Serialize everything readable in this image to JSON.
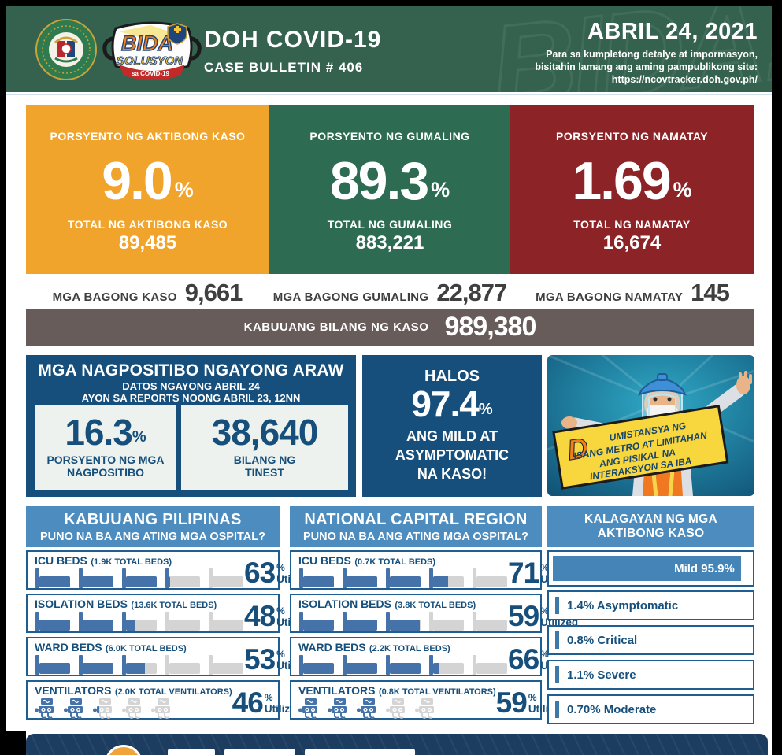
{
  "header": {
    "watermark": "BIDA!",
    "title": "DOH COVID-19",
    "subtitle": "CASE BULLETIN # 406",
    "date": "ABRIL 24, 2021",
    "note1": "Para sa kumpletong detalye at impormasyon,",
    "note2": "bisitahin lamang ang aming pampublikong site:",
    "url": "https://ncovtracker.doh.gov.ph/",
    "doh_seal": "doh-seal-icon",
    "bida_logo_text1": "BIDA",
    "bida_logo_text2": "SOLUSYON",
    "bida_logo_text3": "sa COVID-19"
  },
  "stats": [
    {
      "label": "PORSYENTO NG AKTIBONG KASO",
      "value": "9.0",
      "unit": "%",
      "total_label": "TOTAL NG AKTIBONG KASO",
      "total": "89,485",
      "color": "#F1A42C"
    },
    {
      "label": "PORSYENTO NG GUMALING",
      "value": "89.3",
      "unit": "%",
      "total_label": "TOTAL NG GUMALING",
      "total": "883,221",
      "color": "#2D6C53"
    },
    {
      "label": "PORSYENTO NG NAMATAY",
      "value": "1.69",
      "unit": "%",
      "total_label": "TOTAL NG NAMATAY",
      "total": "16,674",
      "color": "#8C2427"
    }
  ],
  "new_row": [
    {
      "label": "MGA BAGONG KASO",
      "value": "9,661"
    },
    {
      "label": "MGA BAGONG GUMALING",
      "value": "22,877"
    },
    {
      "label": "MGA BAGONG NAMATAY",
      "value": "145"
    }
  ],
  "total_bar": {
    "label": "KABUUANG BILANG NG KASO",
    "value": "989,380"
  },
  "positives": {
    "title": "MGA NAGPOSITIBO NGAYONG ARAW",
    "sub1": "DATOS NGAYONG ABRIL 24",
    "sub2": "AYON SA REPORTS NOONG ABRIL 23, 12NN",
    "pct_value": "16.3",
    "pct_unit": "%",
    "pct_label1": "PORSYENTO NG MGA",
    "pct_label2": "NAGPOSITIBO",
    "count_value": "38,640",
    "count_label1": "BILANG NG",
    "count_label2": "TINEST"
  },
  "mild_note": {
    "intro": "HALOS",
    "value": "97.4",
    "unit": "%",
    "line1": "ANG MILD AT",
    "line2": "ASYMPTOMATIC",
    "line3": "NA KASO!"
  },
  "poster": {
    "sign_initial": "D",
    "sign_line1": "UMISTANSYA NG",
    "sign_line2": "ISANG METRO AT LIMITAHAN",
    "sign_line3": "ANG PISIKAL NA",
    "sign_line4": "INTERAKSYON SA IBA"
  },
  "hospital": {
    "percent_sign": "%",
    "utilized_label": "Utilized",
    "columns": [
      {
        "title": "KABUUANG PILIPINAS",
        "subtitle": "PUNO NA BA ANG ATING MGA OSPITAL?",
        "rows": [
          {
            "label": "ICU BEDS",
            "note": "(1.9K TOTAL BEDS)",
            "pct": 63,
            "icon": "bed"
          },
          {
            "label": "ISOLATION BEDS",
            "note": "(13.6K TOTAL BEDS)",
            "pct": 48,
            "icon": "bed"
          },
          {
            "label": "WARD BEDS",
            "note": "(6.0K TOTAL BEDS)",
            "pct": 53,
            "icon": "bed"
          },
          {
            "label": "VENTILATORS",
            "note": "(2.0K TOTAL VENTILATORS)",
            "pct": 46,
            "icon": "vent"
          }
        ]
      },
      {
        "title": "NATIONAL CAPITAL REGION",
        "subtitle": "PUNO NA BA ANG ATING MGA OSPITAL?",
        "rows": [
          {
            "label": "ICU BEDS",
            "note": "(0.7K TOTAL BEDS)",
            "pct": 71,
            "icon": "bed"
          },
          {
            "label": "ISOLATION BEDS",
            "note": "(3.8K TOTAL BEDS)",
            "pct": 59,
            "icon": "bed"
          },
          {
            "label": "WARD BEDS",
            "note": "(2.2K TOTAL BEDS)",
            "pct": 66,
            "icon": "bed"
          },
          {
            "label": "VENTILATORS",
            "note": "(0.8K TOTAL VENTILATORS)",
            "pct": 59,
            "icon": "vent"
          }
        ]
      }
    ]
  },
  "active_status": {
    "title1": "KALAGAYAN NG MGA",
    "title2": "AKTIBONG KASO",
    "mild_label": "Mild 95.9%",
    "mild_pct": 95.9,
    "items": [
      {
        "text": "1.4% Asymptomatic"
      },
      {
        "text": "0.8% Critical"
      },
      {
        "text": "1.1% Severe"
      },
      {
        "text": "0.70% Moderate"
      }
    ]
  },
  "colors": {
    "header_green": "#35624F",
    "navy": "#164F7B",
    "column_header_blue": "#4D8CBE",
    "card_border": "#1F5E93",
    "icon_filled": "#4573A9",
    "icon_empty": "#D4D4D4",
    "total_bar": "#675C59",
    "mild_bar": "#4584B7",
    "bottom_strip": "#1C3C60"
  }
}
